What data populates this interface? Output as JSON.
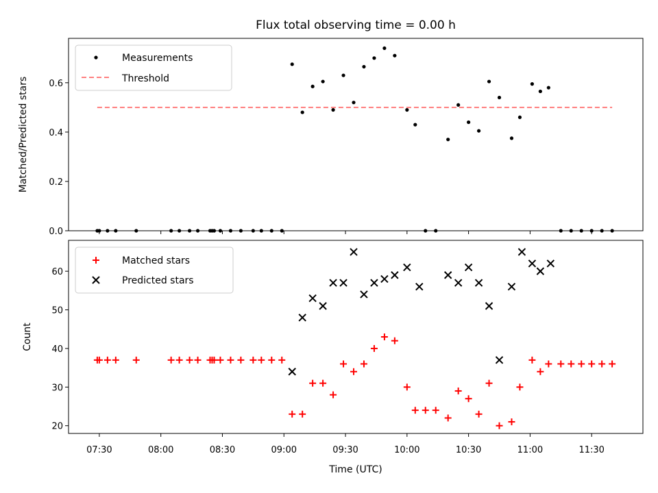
{
  "chart_data": [
    {
      "type": "scatter",
      "title": "Flux total observing time = 0.00 h",
      "ylabel": "Matched/Predicted stars",
      "ylim": [
        0,
        0.78
      ],
      "yticks": [
        0.0,
        0.2,
        0.4,
        0.6
      ],
      "ytick_labels": [
        "0.0",
        "0.2",
        "0.4",
        "0.6"
      ],
      "xlim": [
        "07:15",
        "11:55"
      ],
      "legend": {
        "placement": "top-left",
        "entries": [
          "Measurements",
          "Threshold"
        ]
      },
      "threshold": {
        "name": "Threshold",
        "value": 0.5,
        "x_start": "07:29",
        "x_end": "11:40",
        "color": "#ff7f7f"
      },
      "series": [
        {
          "name": "Measurements",
          "color": "#000000",
          "x": [
            "07:29",
            "07:30",
            "07:34",
            "07:38",
            "07:48",
            "08:05",
            "08:09",
            "08:14",
            "08:18",
            "08:24",
            "08:25",
            "08:26",
            "08:29",
            "08:34",
            "08:39",
            "08:45",
            "08:49",
            "08:54",
            "08:59",
            "09:04",
            "09:09",
            "09:14",
            "09:19",
            "09:24",
            "09:29",
            "09:34",
            "09:39",
            "09:44",
            "09:49",
            "09:54",
            "10:00",
            "10:04",
            "10:09",
            "10:14",
            "10:20",
            "10:25",
            "10:30",
            "10:35",
            "10:40",
            "10:45",
            "10:51",
            "10:55",
            "11:01",
            "11:05",
            "11:09",
            "11:15",
            "11:20",
            "11:25",
            "11:30",
            "11:35",
            "11:40"
          ],
          "y": [
            0,
            0,
            0,
            0,
            0,
            0,
            0,
            0,
            0,
            0,
            0,
            0,
            0,
            0,
            0,
            0,
            0,
            0,
            0,
            0.675,
            0.48,
            0.585,
            0.605,
            0.49,
            0.63,
            0.52,
            0.665,
            0.7,
            0.74,
            0.71,
            0.49,
            0.43,
            0,
            0,
            0.37,
            0.51,
            0.44,
            0.405,
            0.605,
            0.54,
            0.375,
            0.46,
            0.595,
            0.565,
            0.58,
            0,
            0,
            0,
            0,
            0,
            0
          ]
        }
      ]
    },
    {
      "type": "scatter",
      "ylabel": "Count",
      "xlabel": "Time (UTC)",
      "ylim": [
        18,
        68
      ],
      "yticks": [
        20,
        30,
        40,
        50,
        60
      ],
      "ytick_labels": [
        "20",
        "30",
        "40",
        "50",
        "60"
      ],
      "xlim": [
        "07:15",
        "11:55"
      ],
      "xticks": [
        "07:30",
        "08:00",
        "08:30",
        "09:00",
        "09:30",
        "10:00",
        "10:30",
        "11:00",
        "11:30"
      ],
      "xtick_labels": [
        "07:30",
        "08:00",
        "08:30",
        "09:00",
        "09:30",
        "10:00",
        "10:30",
        "11:00",
        "11:30"
      ],
      "legend": {
        "placement": "top-left",
        "entries": [
          "Matched stars",
          "Predicted stars"
        ]
      },
      "series": [
        {
          "name": "Matched stars",
          "marker": "plus",
          "color": "#ff0000",
          "x": [
            "07:29",
            "07:30",
            "07:34",
            "07:38",
            "07:48",
            "08:05",
            "08:09",
            "08:14",
            "08:18",
            "08:24",
            "08:25",
            "08:26",
            "08:29",
            "08:34",
            "08:39",
            "08:45",
            "08:49",
            "08:54",
            "08:59",
            "09:04",
            "09:09",
            "09:14",
            "09:19",
            "09:24",
            "09:29",
            "09:34",
            "09:39",
            "09:44",
            "09:49",
            "09:54",
            "10:00",
            "10:04",
            "10:09",
            "10:14",
            "10:20",
            "10:25",
            "10:30",
            "10:35",
            "10:40",
            "10:45",
            "10:51",
            "10:55",
            "11:01",
            "11:05",
            "11:09",
            "11:15",
            "11:20",
            "11:25",
            "11:30",
            "11:35",
            "11:40"
          ],
          "y": [
            37,
            37,
            37,
            37,
            37,
            37,
            37,
            37,
            37,
            37,
            37,
            37,
            37,
            37,
            37,
            37,
            37,
            37,
            37,
            23,
            23,
            31,
            31,
            28,
            36,
            34,
            36,
            40,
            43,
            42,
            30,
            24,
            24,
            24,
            22,
            29,
            27,
            23,
            31,
            20,
            21,
            30,
            37,
            34,
            36,
            36,
            36,
            36,
            36,
            36,
            36
          ]
        },
        {
          "name": "Predicted stars",
          "marker": "x",
          "color": "#000000",
          "x": [
            "09:04",
            "09:09",
            "09:14",
            "09:19",
            "09:24",
            "09:29",
            "09:34",
            "09:39",
            "09:44",
            "09:49",
            "09:54",
            "10:00",
            "10:06",
            "10:20",
            "10:25",
            "10:30",
            "10:35",
            "10:40",
            "10:45",
            "10:51",
            "10:56",
            "11:01",
            "11:05",
            "11:10"
          ],
          "y": [
            34,
            48,
            53,
            51,
            57,
            57,
            65,
            54,
            57,
            58,
            59,
            61,
            56,
            59,
            57,
            61,
            57,
            51,
            37,
            56,
            65,
            62,
            60,
            62
          ]
        }
      ]
    }
  ]
}
